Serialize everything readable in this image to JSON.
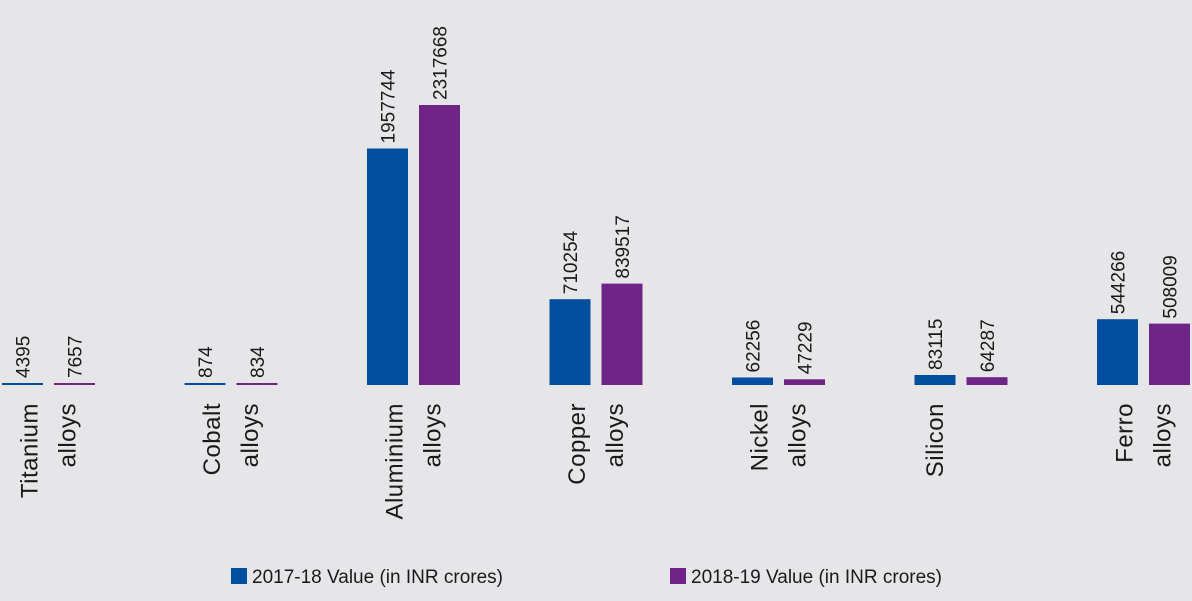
{
  "chart_data": {
    "type": "bar",
    "categories": [
      [
        "Titanium",
        "alloys"
      ],
      [
        "Cobalt",
        "alloys"
      ],
      [
        "Aluminium",
        "alloys"
      ],
      [
        "Copper",
        "alloys"
      ],
      [
        "Nickel",
        "alloys"
      ],
      [
        "Silicon"
      ],
      [
        "Ferro",
        "alloys"
      ]
    ],
    "series": [
      {
        "name": "2017-18 Value (in INR crores)",
        "color": "#004f9f",
        "values": [
          4395,
          874,
          1957744,
          710254,
          62256,
          83115,
          544266
        ]
      },
      {
        "name": "2018-19 Value (in INR crores)",
        "color": "#6e2585",
        "values": [
          7657,
          834,
          2317668,
          839517,
          47229,
          64287,
          508009
        ]
      }
    ],
    "title": "",
    "xlabel": "",
    "ylabel": "",
    "ylim": [
      0,
      2317668
    ],
    "grid": false,
    "legend_position": "bottom-center"
  }
}
